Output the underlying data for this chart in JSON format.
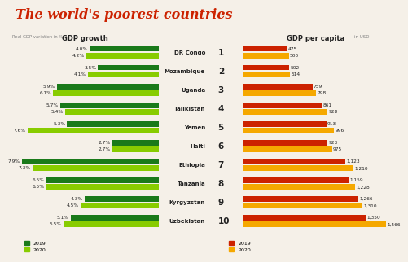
{
  "title": "The world's poorest countries",
  "subtitle_left": "Real GDP variation in %",
  "header_left": "GDP growth",
  "header_right": "GDP per capita",
  "header_right_unit": "in USD",
  "countries": [
    "DR Congo",
    "Mozambique",
    "Uganda",
    "Tajikistan",
    "Yemen",
    "Haiti",
    "Ethiopia",
    "Tanzania",
    "Kyrgyzstan",
    "Uzbekistan"
  ],
  "ranks": [
    "1",
    "2",
    "3",
    "4",
    "5",
    "6",
    "7",
    "8",
    "9",
    "10"
  ],
  "gdp_growth_2019": [
    4.0,
    3.5,
    5.9,
    5.7,
    5.3,
    2.7,
    7.9,
    6.5,
    4.3,
    5.1
  ],
  "gdp_growth_2020": [
    4.2,
    4.1,
    6.1,
    5.4,
    7.6,
    2.7,
    7.3,
    6.5,
    4.5,
    5.5
  ],
  "gdp_capita_2019": [
    475,
    502,
    759,
    861,
    913,
    923,
    1123,
    1159,
    1266,
    1350
  ],
  "gdp_capita_2020": [
    500,
    514,
    798,
    928,
    996,
    975,
    1210,
    1228,
    1310,
    1566
  ],
  "color_growth_2019": "#1a7a1a",
  "color_growth_2020": "#88cc00",
  "color_capita_2019": "#cc2200",
  "color_capita_2020": "#f5a800",
  "title_color": "#cc2200",
  "bg_color": "#f5f0e8",
  "text_color": "#222222",
  "bar_height": 0.3,
  "bar_gap": 0.06,
  "max_growth": 8.5,
  "max_capita": 1700
}
